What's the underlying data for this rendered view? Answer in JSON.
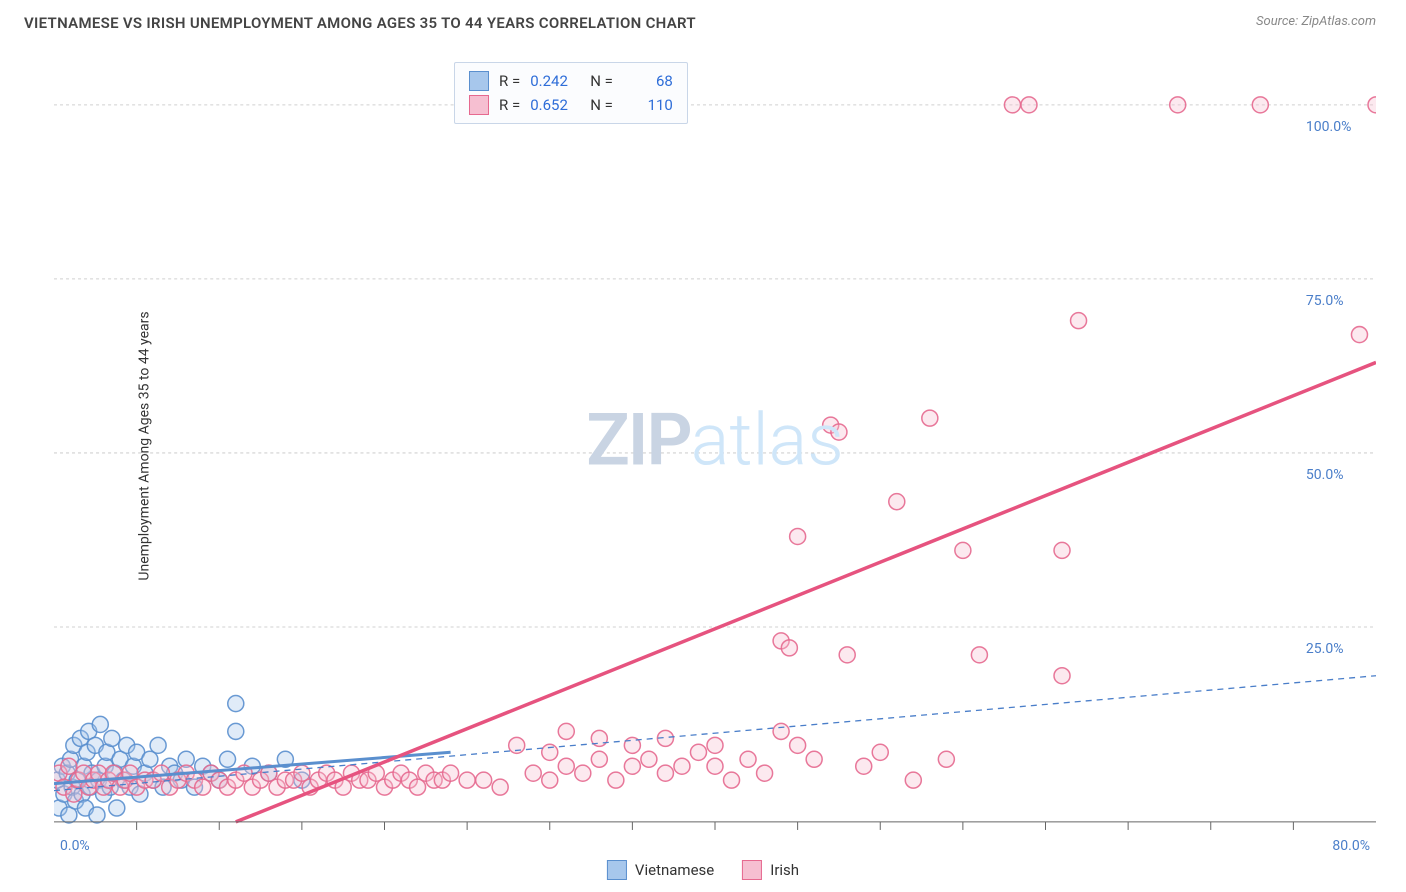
{
  "header": {
    "title": "VIETNAMESE VS IRISH UNEMPLOYMENT AMONG AGES 35 TO 44 YEARS CORRELATION CHART",
    "source_prefix": "Source: ",
    "source": "ZipAtlas.com"
  },
  "ylabel": "Unemployment Among Ages 35 to 44 years",
  "watermark": {
    "part1": "ZIP",
    "part2": "atlas"
  },
  "chart": {
    "type": "scatter",
    "xlim": [
      0,
      80
    ],
    "ylim": [
      -3,
      105
    ],
    "background_color": "#ffffff",
    "grid_color": "#d0d0d0",
    "grid_dash": "3 3",
    "marker_radius": 8,
    "x_axis": {
      "min_label": "0.0%",
      "max_label": "80.0%",
      "tick_positions": [
        5,
        10,
        15,
        20,
        25,
        30,
        35,
        40,
        45,
        50,
        55,
        60,
        65,
        70,
        75
      ]
    },
    "y_axis": {
      "gridlines": [
        25,
        50,
        75,
        100
      ],
      "labels": [
        "25.0%",
        "50.0%",
        "75.0%",
        "100.0%"
      ]
    },
    "series": [
      {
        "key": "vietnamese",
        "label": "Vietnamese",
        "fill": "#a7c7ec",
        "stroke": "#5a8fce",
        "R": "0.242",
        "N": "68",
        "trend": {
          "dash": "6 5",
          "width": 1.3,
          "color": "#4a7ec9",
          "x1": 0,
          "y1": 1.5,
          "x2": 80,
          "y2": 18
        },
        "trend_short": {
          "dash": "none",
          "width": 3,
          "color": "#5a8fce",
          "x1": 0,
          "y1": 2.5,
          "x2": 24,
          "y2": 7
        },
        "points": [
          [
            0.2,
            3
          ],
          [
            0.3,
            -1
          ],
          [
            0.5,
            5
          ],
          [
            0.6,
            1
          ],
          [
            0.8,
            4
          ],
          [
            0.9,
            -2
          ],
          [
            1.0,
            6
          ],
          [
            1.1,
            2
          ],
          [
            1.2,
            8
          ],
          [
            1.3,
            0
          ],
          [
            1.4,
            3
          ],
          [
            1.6,
            9
          ],
          [
            1.7,
            1
          ],
          [
            1.8,
            5
          ],
          [
            1.9,
            -1
          ],
          [
            2.0,
            7
          ],
          [
            2.1,
            10
          ],
          [
            2.2,
            2
          ],
          [
            2.3,
            4
          ],
          [
            2.5,
            8
          ],
          [
            2.6,
            -2
          ],
          [
            2.7,
            3
          ],
          [
            2.8,
            11
          ],
          [
            3.0,
            1
          ],
          [
            3.1,
            5
          ],
          [
            3.2,
            7
          ],
          [
            3.4,
            2
          ],
          [
            3.5,
            9
          ],
          [
            3.7,
            4
          ],
          [
            3.8,
            -1
          ],
          [
            4.0,
            6
          ],
          [
            4.2,
            3
          ],
          [
            4.4,
            8
          ],
          [
            4.6,
            2
          ],
          [
            4.8,
            5
          ],
          [
            5.0,
            7
          ],
          [
            5.2,
            1
          ],
          [
            5.5,
            4
          ],
          [
            5.8,
            6
          ],
          [
            6.0,
            3
          ],
          [
            6.3,
            8
          ],
          [
            6.6,
            2
          ],
          [
            7.0,
            5
          ],
          [
            7.3,
            4
          ],
          [
            7.7,
            3
          ],
          [
            8.0,
            6
          ],
          [
            8.5,
            2
          ],
          [
            9.0,
            5
          ],
          [
            9.5,
            4
          ],
          [
            10,
            3
          ],
          [
            10.5,
            6
          ],
          [
            11,
            14
          ],
          [
            11,
            10
          ],
          [
            12,
            5
          ],
          [
            13,
            4
          ],
          [
            14,
            6
          ],
          [
            15,
            3
          ]
        ]
      },
      {
        "key": "irish",
        "label": "Irish",
        "fill": "#f6bfd1",
        "stroke": "#e6698f",
        "R": "0.652",
        "N": "110",
        "trend": {
          "dash": "none",
          "width": 3.5,
          "color": "#e6537f",
          "x1": 11,
          "y1": -3,
          "x2": 80,
          "y2": 63
        },
        "points": [
          [
            0.3,
            4
          ],
          [
            0.6,
            2
          ],
          [
            0.9,
            5
          ],
          [
            1.2,
            1
          ],
          [
            1.5,
            3
          ],
          [
            1.8,
            4
          ],
          [
            2.1,
            2
          ],
          [
            2.4,
            3
          ],
          [
            2.7,
            4
          ],
          [
            3,
            2
          ],
          [
            3.3,
            3
          ],
          [
            3.6,
            4
          ],
          [
            4,
            2
          ],
          [
            4.3,
            3
          ],
          [
            4.6,
            4
          ],
          [
            5,
            2
          ],
          [
            5.5,
            3
          ],
          [
            6,
            3
          ],
          [
            6.5,
            4
          ],
          [
            7,
            2
          ],
          [
            7.5,
            3
          ],
          [
            8,
            4
          ],
          [
            8.5,
            3
          ],
          [
            9,
            2
          ],
          [
            9.5,
            4
          ],
          [
            10,
            3
          ],
          [
            10.5,
            2
          ],
          [
            11,
            3
          ],
          [
            11.5,
            4
          ],
          [
            12,
            2
          ],
          [
            12.5,
            3
          ],
          [
            13,
            4
          ],
          [
            13.5,
            2
          ],
          [
            14,
            3
          ],
          [
            14.5,
            3
          ],
          [
            15,
            4
          ],
          [
            15.5,
            2
          ],
          [
            16,
            3
          ],
          [
            16.5,
            4
          ],
          [
            17,
            3
          ],
          [
            17.5,
            2
          ],
          [
            18,
            4
          ],
          [
            18.5,
            3
          ],
          [
            19,
            3
          ],
          [
            19.5,
            4
          ],
          [
            20,
            2
          ],
          [
            20.5,
            3
          ],
          [
            21,
            4
          ],
          [
            21.5,
            3
          ],
          [
            22,
            2
          ],
          [
            22.5,
            4
          ],
          [
            23,
            3
          ],
          [
            23.5,
            3
          ],
          [
            24,
            4
          ],
          [
            25,
            3
          ],
          [
            26,
            3
          ],
          [
            27,
            2
          ],
          [
            28,
            8
          ],
          [
            29,
            4
          ],
          [
            30,
            3
          ],
          [
            30,
            7
          ],
          [
            31,
            5
          ],
          [
            31,
            10
          ],
          [
            32,
            4
          ],
          [
            33,
            6
          ],
          [
            33,
            9
          ],
          [
            34,
            3
          ],
          [
            35,
            8
          ],
          [
            35,
            5
          ],
          [
            36,
            6
          ],
          [
            37,
            4
          ],
          [
            37,
            9
          ],
          [
            38,
            5
          ],
          [
            39,
            7
          ],
          [
            40,
            8
          ],
          [
            40,
            5
          ],
          [
            41,
            3
          ],
          [
            42,
            6
          ],
          [
            43,
            4
          ],
          [
            44,
            23
          ],
          [
            44,
            10
          ],
          [
            44.5,
            22
          ],
          [
            45,
            8
          ],
          [
            45,
            38
          ],
          [
            46,
            6
          ],
          [
            47,
            54
          ],
          [
            47.5,
            53
          ],
          [
            48,
            21
          ],
          [
            49,
            5
          ],
          [
            50,
            7
          ],
          [
            51,
            43
          ],
          [
            52,
            3
          ],
          [
            53,
            55
          ],
          [
            54,
            6
          ],
          [
            55,
            36
          ],
          [
            56,
            21
          ],
          [
            58,
            100
          ],
          [
            59,
            100
          ],
          [
            61,
            18
          ],
          [
            61,
            36
          ],
          [
            62,
            69
          ],
          [
            68,
            100
          ],
          [
            73,
            100
          ],
          [
            79,
            67
          ],
          [
            80,
            100
          ]
        ]
      }
    ]
  },
  "bottom_legend": [
    {
      "label": "Vietnamese",
      "fill": "#a7c7ec",
      "stroke": "#5a8fce"
    },
    {
      "label": "Irish",
      "fill": "#f6bfd1",
      "stroke": "#e6698f"
    }
  ]
}
